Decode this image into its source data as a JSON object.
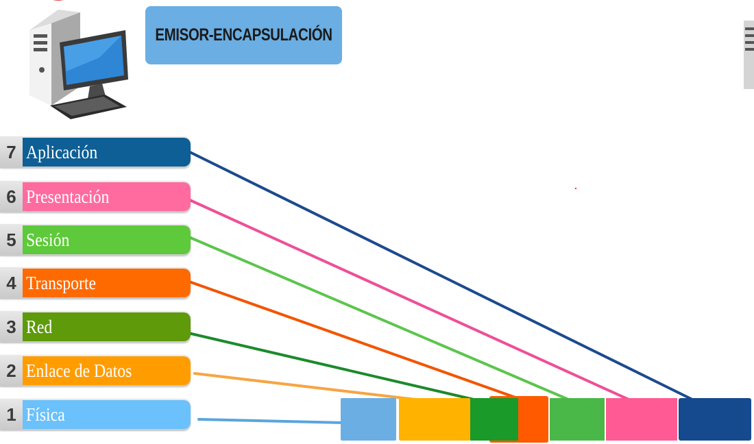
{
  "title": "EMISOR-ENCAPSULACIÓN",
  "layers": [
    {
      "num": "7",
      "name": "Aplicación",
      "color": "#0d5f95"
    },
    {
      "num": "6",
      "name": "Presentación",
      "color": "#ff6b9e"
    },
    {
      "num": "5",
      "name": "Sesión",
      "color": "#5ec93a"
    },
    {
      "num": "4",
      "name": "Transporte",
      "color": "#ff6a00"
    },
    {
      "num": "3",
      "name": "Red",
      "color": "#5e9a0a"
    },
    {
      "num": "2",
      "name": "Enlace de Datos",
      "color": "#ff9d00"
    },
    {
      "num": "1",
      "name": "Física",
      "color": "#6ac1fb"
    }
  ],
  "frame_segment_colors": [
    "#6aaee3",
    "#ffb300",
    "#1a9a28",
    "#ff5a00",
    "#49b848",
    "#ff5a93",
    "#154a8f"
  ],
  "connector_colors": {
    "aplicacion": "#1d4a8f",
    "presentacion": "#ee4f97",
    "sesion": "#5cc54d",
    "transporte": "#f25500",
    "red": "#1c8a2c",
    "enlace": "#f7a544",
    "fisica": "#5aa5dc"
  }
}
